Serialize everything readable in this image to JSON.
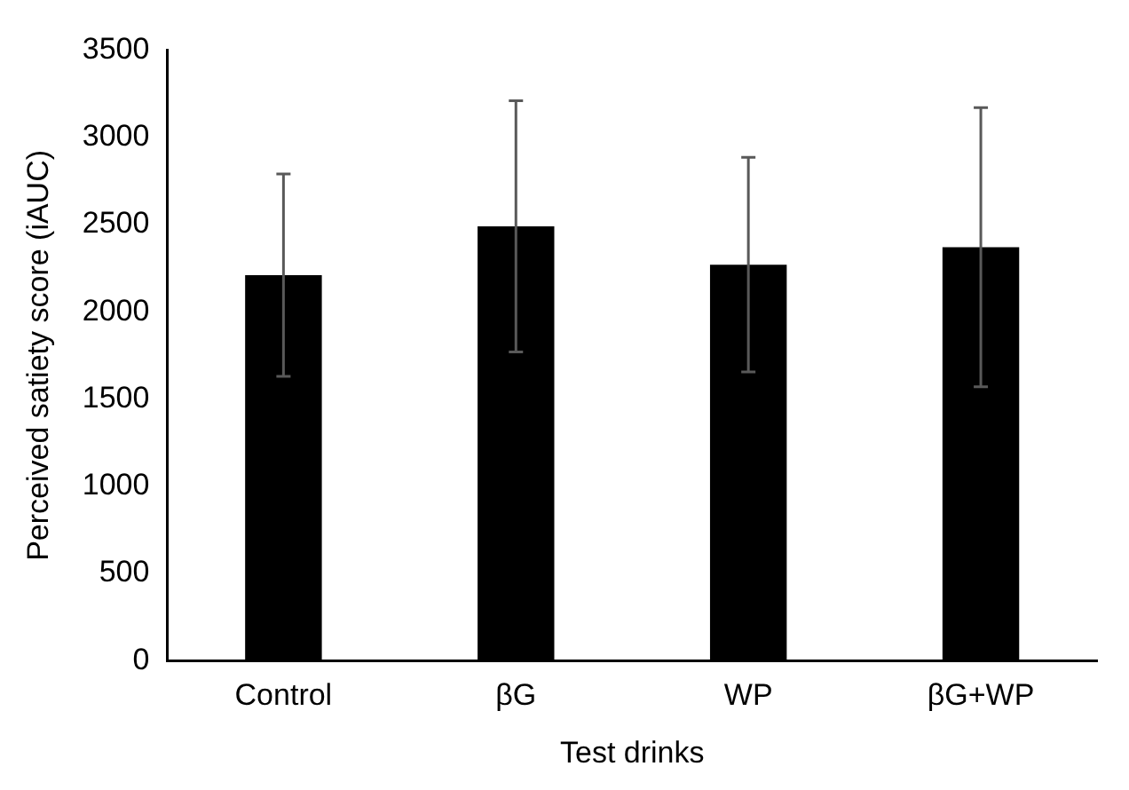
{
  "chart_data": {
    "type": "bar",
    "xlabel": "Test drinks",
    "ylabel": "Perceived satiety score (iAUC)",
    "categories": [
      "Control",
      "βG",
      "WP",
      "βG+WP"
    ],
    "values": [
      2210,
      2490,
      2270,
      2370
    ],
    "errors": [
      580,
      720,
      615,
      800
    ],
    "color": "#000000",
    "ylim": [
      0,
      3500
    ],
    "yticks": [
      0,
      500,
      1000,
      1500,
      2000,
      2500,
      3000,
      3500
    ],
    "grid": false,
    "legend": false
  }
}
